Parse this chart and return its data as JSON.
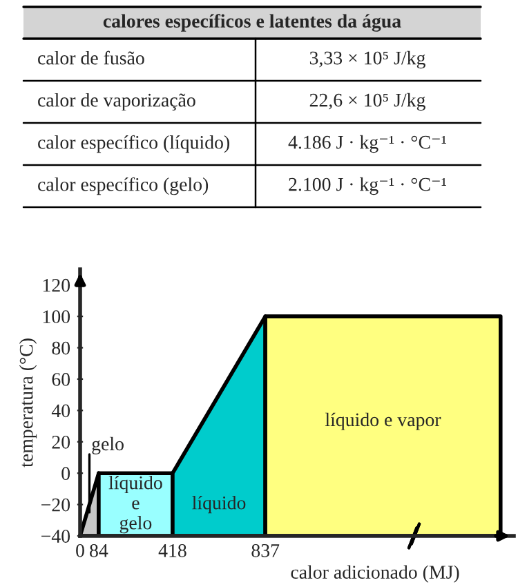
{
  "chart_data": {
    "type": "area",
    "title": "calores específicos e latentes da água",
    "annotations": [
      "calor de fusão",
      "3,33 × 10⁵ J/kg",
      "calor de vaporização",
      "22,6 × 10⁵ J/kg",
      "calor específico (líquido)",
      "4.186 J · kg⁻¹ · °C⁻¹",
      "calor específico (gelo)",
      "2.100 J · kg⁻¹ · °C⁻¹"
    ],
    "xlabel": "calor adicionado (MJ)",
    "ylabel": "temperatura (°C)",
    "series": [
      {
        "name": "gelo",
        "color": "#c8c8c8",
        "x": [
          0,
          84,
          84
        ],
        "values": [
          -40,
          0,
          -40
        ]
      },
      {
        "name": "líquido e gelo",
        "color": "#99ffff",
        "x": [
          84,
          84,
          418,
          418
        ],
        "values": [
          -40,
          0,
          0,
          -40
        ]
      },
      {
        "name": "líquido",
        "color": "#00cccc",
        "x": [
          418,
          418,
          837,
          837
        ],
        "values": [
          -40,
          0,
          100,
          -40
        ]
      },
      {
        "name": "líquido e vapor",
        "color": "#ffff80",
        "x": [
          837,
          837,
          1900,
          1900
        ],
        "values": [
          -40,
          100,
          100,
          -40
        ]
      }
    ],
    "xlim": [
      0,
      1960
    ],
    "xticks": [
      0,
      84,
      418,
      837
    ],
    "ylim": [
      -40,
      130
    ],
    "yticks": [
      {
        "value": -40,
        "label": "−40"
      },
      {
        "value": -20,
        "label": "−20"
      },
      0,
      20,
      40,
      60,
      80,
      100,
      120
    ],
    "grid": false,
    "legend": false
  }
}
